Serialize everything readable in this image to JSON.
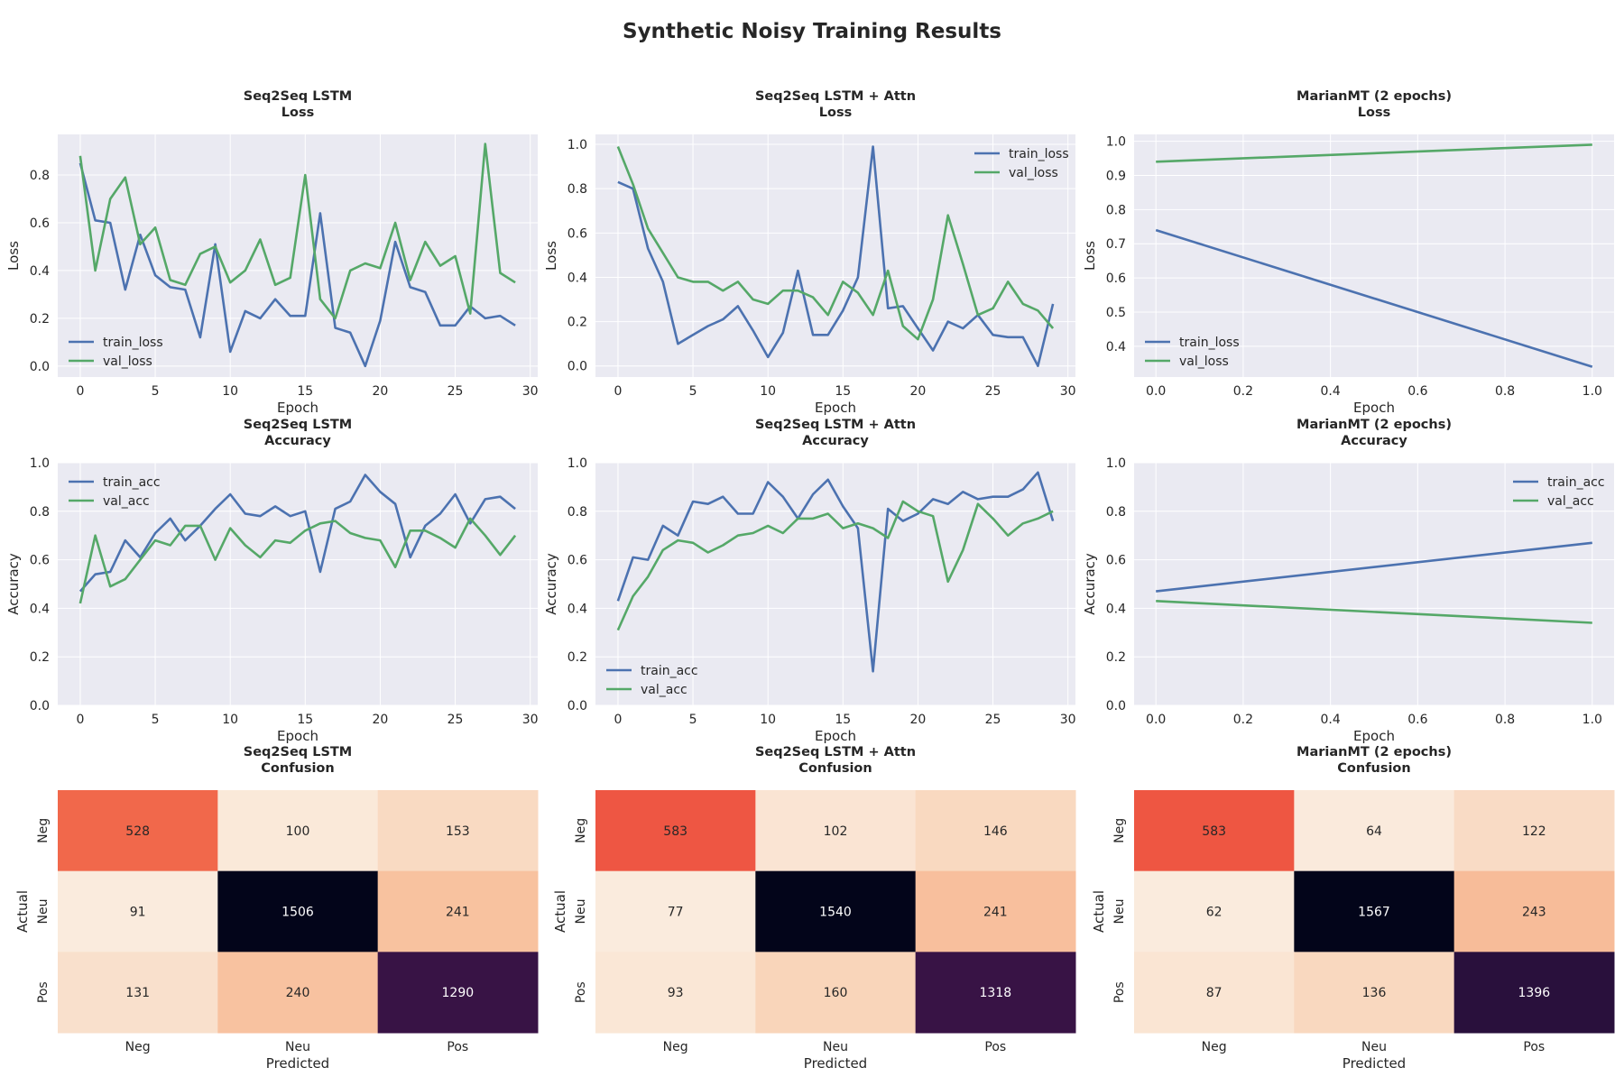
{
  "figure": {
    "title": "Synthetic Noisy Training Results"
  },
  "colors": {
    "train": "#4c72b0",
    "val": "#55a868",
    "axes_bg": "#eaeaf2",
    "grid": "#ffffff"
  },
  "chart_data": [
    {
      "id": "s2s-loss",
      "type": "line",
      "title": [
        "Seq2Seq LSTM",
        "Loss"
      ],
      "xlabel": "Epoch",
      "ylabel": "Loss",
      "xlim": [
        -1.5,
        30.5
      ],
      "ylim": [
        -0.046,
        0.97
      ],
      "xticks": [
        0,
        5,
        10,
        15,
        20,
        25,
        30
      ],
      "yticks": [
        0.0,
        0.2,
        0.4,
        0.6,
        0.8
      ],
      "ytick_labels": [
        "0.0",
        "0.2",
        "0.4",
        "0.6",
        "0.8"
      ],
      "legend_loc": "lower-left",
      "x": [
        0,
        1,
        2,
        3,
        4,
        5,
        6,
        7,
        8,
        9,
        10,
        11,
        12,
        13,
        14,
        15,
        16,
        17,
        18,
        19,
        20,
        21,
        22,
        23,
        24,
        25,
        26,
        27,
        28,
        29
      ],
      "series": [
        {
          "name": "train_loss",
          "color": "#4c72b0",
          "values": [
            0.85,
            0.61,
            0.6,
            0.32,
            0.55,
            0.38,
            0.33,
            0.32,
            0.12,
            0.51,
            0.06,
            0.23,
            0.2,
            0.28,
            0.21,
            0.21,
            0.64,
            0.16,
            0.14,
            0.0,
            0.19,
            0.52,
            0.33,
            0.31,
            0.17,
            0.17,
            0.25,
            0.2,
            0.21,
            0.17
          ]
        },
        {
          "name": "val_loss",
          "color": "#55a868",
          "values": [
            0.88,
            0.4,
            0.7,
            0.79,
            0.51,
            0.58,
            0.36,
            0.34,
            0.47,
            0.5,
            0.35,
            0.4,
            0.53,
            0.34,
            0.37,
            0.8,
            0.28,
            0.2,
            0.4,
            0.43,
            0.41,
            0.6,
            0.36,
            0.52,
            0.42,
            0.46,
            0.22,
            0.93,
            0.39,
            0.35
          ]
        }
      ]
    },
    {
      "id": "attn-loss",
      "type": "line",
      "title": [
        "Seq2Seq LSTM + Attn",
        "Loss"
      ],
      "xlabel": "Epoch",
      "ylabel": "Loss",
      "xlim": [
        -1.5,
        30.5
      ],
      "ylim": [
        -0.05,
        1.045
      ],
      "xticks": [
        0,
        5,
        10,
        15,
        20,
        25,
        30
      ],
      "yticks": [
        0.0,
        0.2,
        0.4,
        0.6,
        0.8,
        1.0
      ],
      "ytick_labels": [
        "0.0",
        "0.2",
        "0.4",
        "0.6",
        "0.8",
        "1.0"
      ],
      "legend_loc": "upper-right",
      "x": [
        0,
        1,
        2,
        3,
        4,
        5,
        6,
        7,
        8,
        9,
        10,
        11,
        12,
        13,
        14,
        15,
        16,
        17,
        18,
        19,
        20,
        21,
        22,
        23,
        24,
        25,
        26,
        27,
        28,
        29
      ],
      "series": [
        {
          "name": "train_loss",
          "color": "#4c72b0",
          "values": [
            0.83,
            0.8,
            0.53,
            0.38,
            0.1,
            0.14,
            0.18,
            0.21,
            0.27,
            0.16,
            0.04,
            0.15,
            0.43,
            0.14,
            0.14,
            0.25,
            0.4,
            0.99,
            0.26,
            0.27,
            0.17,
            0.07,
            0.2,
            0.17,
            0.23,
            0.14,
            0.13,
            0.13,
            0.0,
            0.28
          ]
        },
        {
          "name": "val_loss",
          "color": "#55a868",
          "values": [
            0.99,
            0.82,
            0.62,
            0.51,
            0.4,
            0.38,
            0.38,
            0.34,
            0.38,
            0.3,
            0.28,
            0.34,
            0.34,
            0.31,
            0.23,
            0.38,
            0.33,
            0.23,
            0.43,
            0.18,
            0.12,
            0.3,
            0.68,
            0.46,
            0.23,
            0.26,
            0.38,
            0.28,
            0.25,
            0.17
          ]
        }
      ]
    },
    {
      "id": "marian-loss",
      "type": "line",
      "title": [
        "MarianMT (2 epochs)",
        "Loss"
      ],
      "xlabel": "Epoch",
      "ylabel": "Loss",
      "xlim": [
        -0.05,
        1.05
      ],
      "ylim": [
        0.31,
        1.02
      ],
      "xticks": [
        0.0,
        0.2,
        0.4,
        0.6,
        0.8,
        1.0
      ],
      "xtick_labels": [
        "0.0",
        "0.2",
        "0.4",
        "0.6",
        "0.8",
        "1.0"
      ],
      "yticks": [
        0.4,
        0.5,
        0.6,
        0.7,
        0.8,
        0.9,
        1.0
      ],
      "ytick_labels": [
        "0.4",
        "0.5",
        "0.6",
        "0.7",
        "0.8",
        "0.9",
        "1.0"
      ],
      "legend_loc": "lower-left",
      "x": [
        0,
        1
      ],
      "series": [
        {
          "name": "train_loss",
          "color": "#4c72b0",
          "values": [
            0.74,
            0.34
          ]
        },
        {
          "name": "val_loss",
          "color": "#55a868",
          "values": [
            0.94,
            0.99
          ]
        }
      ]
    },
    {
      "id": "s2s-acc",
      "type": "line",
      "title": [
        "Seq2Seq LSTM",
        "Accuracy"
      ],
      "xlabel": "Epoch",
      "ylabel": "Accuracy",
      "xlim": [
        -1.5,
        30.5
      ],
      "ylim": [
        0,
        1
      ],
      "xticks": [
        0,
        5,
        10,
        15,
        20,
        25,
        30
      ],
      "yticks": [
        0.0,
        0.2,
        0.4,
        0.6,
        0.8,
        1.0
      ],
      "ytick_labels": [
        "0.0",
        "0.2",
        "0.4",
        "0.6",
        "0.8",
        "1.0"
      ],
      "legend_loc": "upper-left",
      "x": [
        0,
        1,
        2,
        3,
        4,
        5,
        6,
        7,
        8,
        9,
        10,
        11,
        12,
        13,
        14,
        15,
        16,
        17,
        18,
        19,
        20,
        21,
        22,
        23,
        24,
        25,
        26,
        27,
        28,
        29
      ],
      "series": [
        {
          "name": "train_acc",
          "color": "#4c72b0",
          "values": [
            0.47,
            0.54,
            0.55,
            0.68,
            0.61,
            0.71,
            0.77,
            0.68,
            0.74,
            0.81,
            0.87,
            0.79,
            0.78,
            0.82,
            0.78,
            0.8,
            0.55,
            0.81,
            0.84,
            0.95,
            0.88,
            0.83,
            0.61,
            0.74,
            0.79,
            0.87,
            0.75,
            0.85,
            0.86,
            0.81
          ]
        },
        {
          "name": "val_acc",
          "color": "#55a868",
          "values": [
            0.42,
            0.7,
            0.49,
            0.52,
            0.6,
            0.68,
            0.66,
            0.74,
            0.74,
            0.6,
            0.73,
            0.66,
            0.61,
            0.68,
            0.67,
            0.72,
            0.75,
            0.76,
            0.71,
            0.69,
            0.68,
            0.57,
            0.72,
            0.72,
            0.69,
            0.65,
            0.77,
            0.7,
            0.62,
            0.7
          ]
        }
      ]
    },
    {
      "id": "attn-acc",
      "type": "line",
      "title": [
        "Seq2Seq LSTM + Attn",
        "Accuracy"
      ],
      "xlabel": "Epoch",
      "ylabel": "Accuracy",
      "xlim": [
        -1.5,
        30.5
      ],
      "ylim": [
        0,
        1
      ],
      "xticks": [
        0,
        5,
        10,
        15,
        20,
        25,
        30
      ],
      "yticks": [
        0.0,
        0.2,
        0.4,
        0.6,
        0.8,
        1.0
      ],
      "ytick_labels": [
        "0.0",
        "0.2",
        "0.4",
        "0.6",
        "0.8",
        "1.0"
      ],
      "legend_loc": "lower-left",
      "x": [
        0,
        1,
        2,
        3,
        4,
        5,
        6,
        7,
        8,
        9,
        10,
        11,
        12,
        13,
        14,
        15,
        16,
        17,
        18,
        19,
        20,
        21,
        22,
        23,
        24,
        25,
        26,
        27,
        28,
        29
      ],
      "series": [
        {
          "name": "train_acc",
          "color": "#4c72b0",
          "values": [
            0.43,
            0.61,
            0.6,
            0.74,
            0.7,
            0.84,
            0.83,
            0.86,
            0.79,
            0.79,
            0.92,
            0.86,
            0.77,
            0.87,
            0.93,
            0.82,
            0.73,
            0.14,
            0.81,
            0.76,
            0.79,
            0.85,
            0.83,
            0.88,
            0.85,
            0.86,
            0.86,
            0.89,
            0.96,
            0.76
          ]
        },
        {
          "name": "val_acc",
          "color": "#55a868",
          "values": [
            0.31,
            0.45,
            0.53,
            0.64,
            0.68,
            0.67,
            0.63,
            0.66,
            0.7,
            0.71,
            0.74,
            0.71,
            0.77,
            0.77,
            0.79,
            0.73,
            0.75,
            0.73,
            0.69,
            0.84,
            0.8,
            0.78,
            0.51,
            0.64,
            0.83,
            0.77,
            0.7,
            0.75,
            0.77,
            0.8
          ]
        }
      ]
    },
    {
      "id": "marian-acc",
      "type": "line",
      "title": [
        "MarianMT (2 epochs)",
        "Accuracy"
      ],
      "xlabel": "Epoch",
      "ylabel": "Accuracy",
      "xlim": [
        -0.05,
        1.05
      ],
      "ylim": [
        0,
        1
      ],
      "xticks": [
        0.0,
        0.2,
        0.4,
        0.6,
        0.8,
        1.0
      ],
      "xtick_labels": [
        "0.0",
        "0.2",
        "0.4",
        "0.6",
        "0.8",
        "1.0"
      ],
      "yticks": [
        0.0,
        0.2,
        0.4,
        0.6,
        0.8,
        1.0
      ],
      "ytick_labels": [
        "0.0",
        "0.2",
        "0.4",
        "0.6",
        "0.8",
        "1.0"
      ],
      "legend_loc": "upper-right",
      "x": [
        0,
        1
      ],
      "series": [
        {
          "name": "train_acc",
          "color": "#4c72b0",
          "values": [
            0.47,
            0.67
          ]
        },
        {
          "name": "val_acc",
          "color": "#55a868",
          "values": [
            0.43,
            0.34
          ]
        }
      ]
    },
    {
      "id": "s2s-conf",
      "type": "heatmap",
      "title": [
        "Seq2Seq LSTM",
        "Confusion"
      ],
      "xlabel": "Predicted",
      "ylabel": "Actual",
      "col_labels": [
        "Neg",
        "Neu",
        "Pos"
      ],
      "row_labels": [
        "Neg",
        "Neu",
        "Pos"
      ],
      "matrix": [
        [
          528,
          100,
          153
        ],
        [
          91,
          1506,
          241
        ],
        [
          131,
          240,
          1290
        ]
      ]
    },
    {
      "id": "attn-conf",
      "type": "heatmap",
      "title": [
        "Seq2Seq LSTM + Attn",
        "Confusion"
      ],
      "xlabel": "Predicted",
      "ylabel": "Actual",
      "col_labels": [
        "Neg",
        "Neu",
        "Pos"
      ],
      "row_labels": [
        "Neg",
        "Neu",
        "Pos"
      ],
      "matrix": [
        [
          583,
          102,
          146
        ],
        [
          77,
          1540,
          241
        ],
        [
          93,
          160,
          1318
        ]
      ]
    },
    {
      "id": "marian-conf",
      "type": "heatmap",
      "title": [
        "MarianMT (2 epochs)",
        "Confusion"
      ],
      "xlabel": "Predicted",
      "ylabel": "Actual",
      "col_labels": [
        "Neg",
        "Neu",
        "Pos"
      ],
      "row_labels": [
        "Neg",
        "Neu",
        "Pos"
      ],
      "matrix": [
        [
          583,
          64,
          122
        ],
        [
          62,
          1567,
          243
        ],
        [
          87,
          136,
          1396
        ]
      ]
    }
  ]
}
